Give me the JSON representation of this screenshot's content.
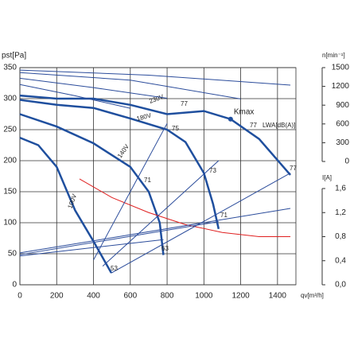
{
  "chart_data": {
    "type": "line",
    "y_label": "pst[Pa]",
    "x_label": "qv[m³/h]",
    "y2_label": "n[min⁻¹]",
    "y3_label": "I[A]",
    "xlim": [
      0,
      1500
    ],
    "xticks": [
      0,
      200,
      400,
      600,
      800,
      1000,
      1200,
      1400
    ],
    "ylim": [
      0,
      350
    ],
    "yticks": [
      0,
      50,
      100,
      150,
      200,
      250,
      300,
      350
    ],
    "y2lim": [
      0,
      1500
    ],
    "y2ticks": [
      0,
      300,
      600,
      900,
      1200,
      1500
    ],
    "y3lim": [
      0,
      1.6
    ],
    "y3ticks": [
      {
        "value": 0,
        "label": "0,0"
      },
      {
        "value": 0.4,
        "label": "0,4"
      },
      {
        "value": 0.8,
        "label": "0,8"
      },
      {
        "value": 1.2,
        "label": "1,2"
      },
      {
        "value": 1.6,
        "label": "1,6"
      }
    ],
    "grid": true,
    "series": [
      {
        "name": "230V",
        "color": "#1f4f9e",
        "x": [
          0,
          200,
          400,
          600,
          800,
          1000,
          1145,
          1300,
          1470
        ],
        "values": [
          305,
          300,
          300,
          290,
          275,
          280,
          267,
          235,
          177
        ]
      },
      {
        "name": "180V",
        "color": "#1f4f9e",
        "x": [
          0,
          200,
          400,
          600,
          800,
          900,
          1000,
          1050,
          1080
        ],
        "values": [
          298,
          290,
          285,
          268,
          250,
          230,
          180,
          130,
          90
        ]
      },
      {
        "name": "140V",
        "color": "#1f4f9e",
        "x": [
          0,
          200,
          400,
          600,
          700,
          760,
          780
        ],
        "values": [
          275,
          255,
          228,
          190,
          150,
          100,
          48
        ]
      },
      {
        "name": "100V",
        "color": "#1f4f9e",
        "x": [
          0,
          100,
          200,
          300,
          400,
          497
        ],
        "values": [
          237,
          225,
          190,
          120,
          70,
          19
        ]
      },
      {
        "color": "#2b4c9b",
        "axis": "y2",
        "x": [
          0,
          700,
          1470
        ],
        "values": [
          1460,
          1380,
          1220
        ]
      },
      {
        "color": "#2b4c9b",
        "axis": "y2",
        "x": [
          0,
          600,
          1200
        ],
        "values": [
          1420,
          1300,
          1000
        ]
      },
      {
        "color": "#2b4c9b",
        "axis": "y2",
        "x": [
          0,
          400,
          800
        ],
        "values": [
          1330,
          1180,
          1010
        ]
      },
      {
        "color": "#2b4c9b",
        "axis": "y2",
        "x": [
          0,
          300,
          600
        ],
        "values": [
          1230,
          1050,
          850
        ]
      },
      {
        "color": "#e02020",
        "axis": "y3",
        "x": [
          324,
          500,
          700,
          900,
          1100,
          1300,
          1470
        ],
        "values": [
          1.76,
          1.45,
          1.2,
          1.0,
          0.87,
          0.8,
          0.8
        ]
      },
      {
        "color": "#2b4c9b",
        "axis": "y3",
        "x": [
          0,
          1470
        ],
        "values": [
          0.53,
          1.27
        ]
      },
      {
        "color": "#2b4c9b",
        "axis": "y3",
        "x": [
          0,
          1080
        ],
        "values": [
          0.5,
          1.05
        ]
      },
      {
        "color": "#2b4c9b",
        "axis": "y3",
        "x": [
          0,
          780
        ],
        "values": [
          0.48,
          0.75
        ]
      },
      {
        "color": "#2b4c9b",
        "x": [
          400,
          800
        ],
        "values": [
          40,
          260
        ]
      },
      {
        "color": "#2b4c9b",
        "x": [
          450,
          1080
        ],
        "values": [
          30,
          200
        ]
      },
      {
        "color": "#2b4c9b",
        "x": [
          497,
          1470
        ],
        "values": [
          19,
          180
        ]
      }
    ],
    "points": [
      {
        "label": "Kmax",
        "x": 1145,
        "y": 267,
        "color": "#1f4f9e"
      }
    ],
    "noise_label": "LWA[dB(A)]",
    "noise_values": [
      77,
      75,
      71,
      53,
      63,
      73,
      71,
      77,
      77
    ]
  }
}
